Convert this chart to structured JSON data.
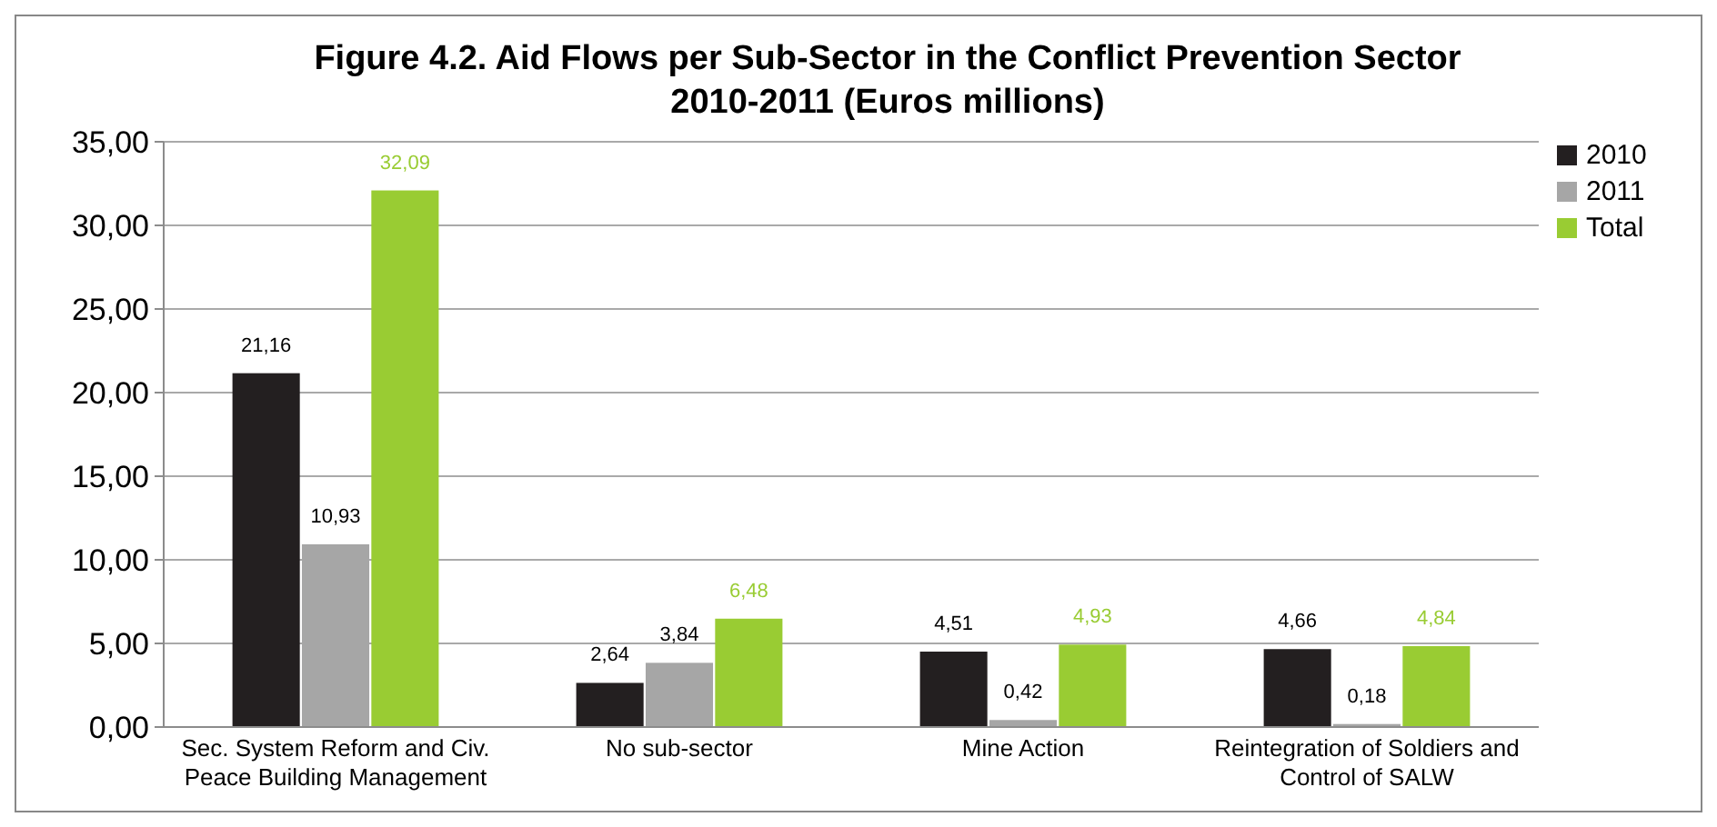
{
  "chart_data": {
    "type": "bar",
    "title": "Figure 4.2. Aid Flows per Sub-Sector in the Conflict Prevention Sector 2010-2011 (Euros millions)",
    "categories": [
      "Sec. System Reform and Civ. Peace Building Management",
      "No sub-sector",
      "Mine Action",
      "Reintegration of Soldiers and Control of SALW"
    ],
    "series": [
      {
        "name": "2010",
        "color": "#231f20",
        "values": [
          21.16,
          2.64,
          4.51,
          4.66
        ],
        "value_labels": [
          "21,16",
          "2,64",
          "4,51",
          "4,66"
        ]
      },
      {
        "name": "2011",
        "color": "#a6a6a6",
        "values": [
          10.93,
          3.84,
          0.42,
          0.18
        ],
        "value_labels": [
          "10,93",
          "3,84",
          "0,42",
          "0,18"
        ]
      },
      {
        "name": "Total",
        "color": "#99cc33",
        "values": [
          32.09,
          6.48,
          4.93,
          4.84
        ],
        "value_labels": [
          "32,09",
          "6,48",
          "4,93",
          "4,84"
        ]
      }
    ],
    "ylim": [
      0,
      35
    ],
    "yticks": [
      {
        "value": 0,
        "label": "0,00"
      },
      {
        "value": 5,
        "label": "5,00"
      },
      {
        "value": 10,
        "label": "10,00"
      },
      {
        "value": 15,
        "label": "15,00"
      },
      {
        "value": 20,
        "label": "20,00"
      },
      {
        "value": 25,
        "label": "25,00"
      },
      {
        "value": 30,
        "label": "30,00"
      },
      {
        "value": 35,
        "label": "35,00"
      }
    ],
    "grid": "y",
    "legend": "top right"
  }
}
